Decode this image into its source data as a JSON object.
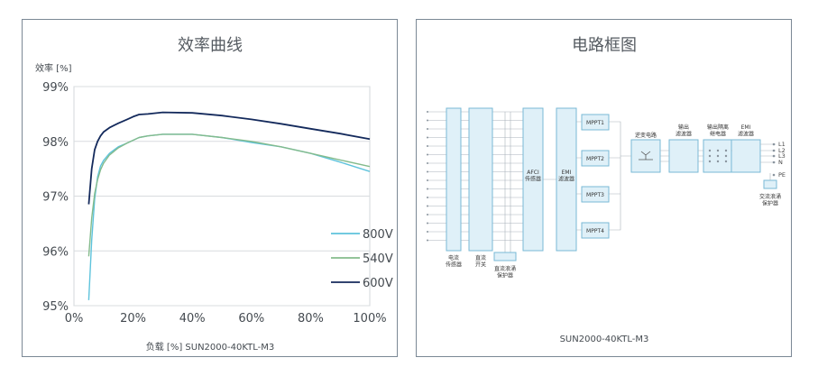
{
  "chart_data": {
    "type": "line",
    "title": "效率曲线",
    "ylabel": "效率 [%]",
    "xlabel": "负载 [%] SUN2000-40KTL-M3",
    "xlim": [
      0,
      100
    ],
    "ylim": [
      95,
      99
    ],
    "x_ticks": [
      "0%",
      "20%",
      "40%",
      "60%",
      "80%",
      "100%"
    ],
    "y_ticks": [
      "95%",
      "96%",
      "97%",
      "98%",
      "99%"
    ],
    "x_tick_values": [
      0,
      20,
      40,
      60,
      80,
      100
    ],
    "y_tick_values": [
      95,
      96,
      97,
      98,
      99
    ],
    "grid": true,
    "legend_position": "bottom-right",
    "series": [
      {
        "name": "800V",
        "color": "#5ec3dc",
        "x": [
          5,
          6,
          7,
          8,
          9,
          10,
          12,
          15,
          18,
          22,
          25,
          30,
          40,
          50,
          60,
          70,
          80,
          90,
          100
        ],
        "y": [
          95.1,
          96.2,
          96.95,
          97.35,
          97.55,
          97.65,
          97.78,
          97.9,
          97.97,
          98.07,
          98.1,
          98.13,
          98.13,
          98.07,
          97.98,
          97.9,
          97.78,
          97.62,
          97.45
        ]
      },
      {
        "name": "540V",
        "color": "#84bb8c",
        "x": [
          5,
          6,
          7,
          8,
          9,
          10,
          12,
          15,
          18,
          22,
          25,
          30,
          40,
          50,
          60,
          70,
          80,
          90,
          100
        ],
        "y": [
          95.9,
          96.6,
          97.05,
          97.3,
          97.48,
          97.6,
          97.75,
          97.88,
          97.97,
          98.07,
          98.1,
          98.13,
          98.13,
          98.07,
          98.0,
          97.9,
          97.78,
          97.66,
          97.54
        ]
      },
      {
        "name": "600V",
        "color": "#142a5c",
        "x": [
          5,
          6,
          7,
          8,
          9,
          10,
          12,
          15,
          18,
          20,
          22,
          25,
          30,
          40,
          50,
          60,
          70,
          80,
          90,
          100
        ],
        "y": [
          96.85,
          97.5,
          97.85,
          98.0,
          98.1,
          98.17,
          98.25,
          98.33,
          98.4,
          98.45,
          98.49,
          98.5,
          98.53,
          98.52,
          98.47,
          98.4,
          98.32,
          98.23,
          98.14,
          98.04
        ]
      }
    ]
  },
  "diagram": {
    "title": "电路框图",
    "footer": "SUN2000-40KTL-M3",
    "blocks": {
      "current_sensor": "电流\n传感器",
      "dc_switch": "直流\n开关",
      "dc_spd": "直流浪涌\n保护器",
      "afci": "AFCI\n传感器",
      "emi_in": "EMI\n滤波器",
      "mppt1": "MPPT1",
      "mppt2": "MPPT2",
      "mppt3": "MPPT3",
      "mppt4": "MPPT4",
      "inverter": "逆变电路",
      "output_filter": "输出\n滤波器",
      "output_relay": "输出隔离\n继电器",
      "emi_out": "EMI\n滤波器",
      "ac_spd": "交流浪涌\n保护器"
    },
    "ac_terminals": [
      "L1",
      "L2",
      "L3",
      "N",
      "PE"
    ]
  }
}
